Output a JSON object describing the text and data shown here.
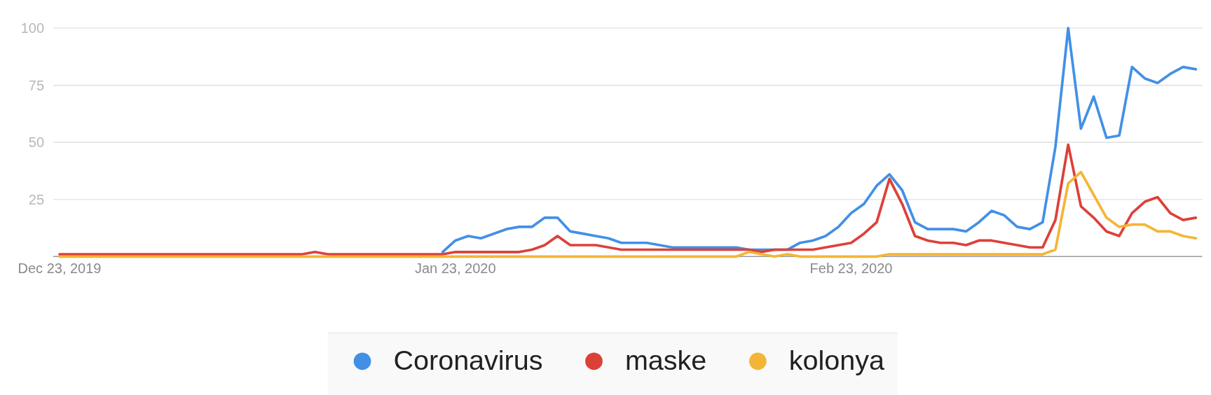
{
  "chart_data": {
    "type": "line",
    "x": [
      "2019-12-23",
      "2019-12-24",
      "2019-12-25",
      "2019-12-26",
      "2019-12-27",
      "2019-12-28",
      "2019-12-29",
      "2019-12-30",
      "2019-12-31",
      "2020-01-01",
      "2020-01-02",
      "2020-01-03",
      "2020-01-04",
      "2020-01-05",
      "2020-01-06",
      "2020-01-07",
      "2020-01-08",
      "2020-01-09",
      "2020-01-10",
      "2020-01-11",
      "2020-01-12",
      "2020-01-13",
      "2020-01-14",
      "2020-01-15",
      "2020-01-16",
      "2020-01-17",
      "2020-01-18",
      "2020-01-19",
      "2020-01-20",
      "2020-01-21",
      "2020-01-22",
      "2020-01-23",
      "2020-01-24",
      "2020-01-25",
      "2020-01-26",
      "2020-01-27",
      "2020-01-28",
      "2020-01-29",
      "2020-01-30",
      "2020-01-31",
      "2020-02-01",
      "2020-02-02",
      "2020-02-03",
      "2020-02-04",
      "2020-02-05",
      "2020-02-06",
      "2020-02-07",
      "2020-02-08",
      "2020-02-09",
      "2020-02-10",
      "2020-02-11",
      "2020-02-12",
      "2020-02-13",
      "2020-02-14",
      "2020-02-15",
      "2020-02-16",
      "2020-02-17",
      "2020-02-18",
      "2020-02-19",
      "2020-02-20",
      "2020-02-21",
      "2020-02-22",
      "2020-02-23",
      "2020-02-24",
      "2020-02-25",
      "2020-02-26",
      "2020-02-27",
      "2020-02-28",
      "2020-02-29",
      "2020-03-01",
      "2020-03-02",
      "2020-03-03",
      "2020-03-04",
      "2020-03-05",
      "2020-03-06",
      "2020-03-07",
      "2020-03-08",
      "2020-03-09",
      "2020-03-10",
      "2020-03-11",
      "2020-03-12",
      "2020-03-13",
      "2020-03-14",
      "2020-03-15",
      "2020-03-16",
      "2020-03-17",
      "2020-03-18",
      "2020-03-19",
      "2020-03-20",
      "2020-03-21"
    ],
    "xlim": [
      "2019-12-22T12:00",
      "2020-03-21T12:00"
    ],
    "xticks": [
      {
        "value": "2019-12-23",
        "label": "Dec 23, 2019"
      },
      {
        "value": "2020-01-23",
        "label": "Jan 23, 2020"
      },
      {
        "value": "2020-02-23",
        "label": "Feb 23, 2020"
      }
    ],
    "ylim": [
      0,
      100
    ],
    "yticks": [
      25,
      50,
      75,
      100
    ],
    "grid": "y",
    "legend": "bottom",
    "series": [
      {
        "name": "Coronavirus",
        "color": "#4290e6",
        "values": [
          null,
          null,
          null,
          null,
          null,
          null,
          null,
          null,
          null,
          null,
          null,
          null,
          null,
          null,
          null,
          null,
          null,
          null,
          null,
          null,
          null,
          null,
          null,
          null,
          null,
          null,
          null,
          null,
          null,
          null,
          2,
          7,
          9,
          8,
          10,
          12,
          13,
          13,
          17,
          17,
          11,
          10,
          9,
          8,
          6,
          6,
          6,
          5,
          4,
          4,
          4,
          4,
          4,
          4,
          3,
          3,
          3,
          3,
          6,
          7,
          9,
          13,
          19,
          23,
          31,
          36,
          29,
          15,
          12,
          12,
          12,
          11,
          15,
          20,
          18,
          13,
          12,
          15,
          48,
          100,
          56,
          70,
          52,
          53,
          83,
          78,
          76,
          80,
          83,
          82
        ]
      },
      {
        "name": "maske",
        "color": "#dc4139",
        "values": [
          1,
          1,
          1,
          1,
          1,
          1,
          1,
          1,
          1,
          1,
          1,
          1,
          1,
          1,
          1,
          1,
          1,
          1,
          1,
          1,
          2,
          1,
          1,
          1,
          1,
          1,
          1,
          1,
          1,
          1,
          1,
          2,
          2,
          2,
          2,
          2,
          2,
          3,
          5,
          9,
          5,
          5,
          5,
          4,
          3,
          3,
          3,
          3,
          3,
          3,
          3,
          3,
          3,
          3,
          3,
          2,
          3,
          3,
          3,
          3,
          4,
          5,
          6,
          10,
          15,
          34,
          23,
          9,
          7,
          6,
          6,
          5,
          7,
          7,
          6,
          5,
          4,
          4,
          16,
          49,
          22,
          17,
          11,
          9,
          19,
          24,
          26,
          19,
          16,
          17
        ]
      },
      {
        "name": "kolonya",
        "color": "#f4b536",
        "values": [
          0,
          0,
          0,
          0,
          0,
          0,
          0,
          0,
          0,
          0,
          0,
          0,
          0,
          0,
          0,
          0,
          0,
          0,
          0,
          0,
          0,
          0,
          0,
          0,
          0,
          0,
          0,
          0,
          0,
          0,
          0,
          0,
          0,
          0,
          0,
          0,
          0,
          0,
          0,
          0,
          0,
          0,
          0,
          0,
          0,
          0,
          0,
          0,
          0,
          0,
          0,
          0,
          0,
          0,
          2,
          1,
          0,
          1,
          0,
          0,
          0,
          0,
          0,
          0,
          0,
          1,
          1,
          1,
          1,
          1,
          1,
          1,
          1,
          1,
          1,
          1,
          1,
          1,
          3,
          32,
          37,
          27,
          17,
          13,
          14,
          14,
          11,
          11,
          9,
          8
        ]
      }
    ]
  }
}
